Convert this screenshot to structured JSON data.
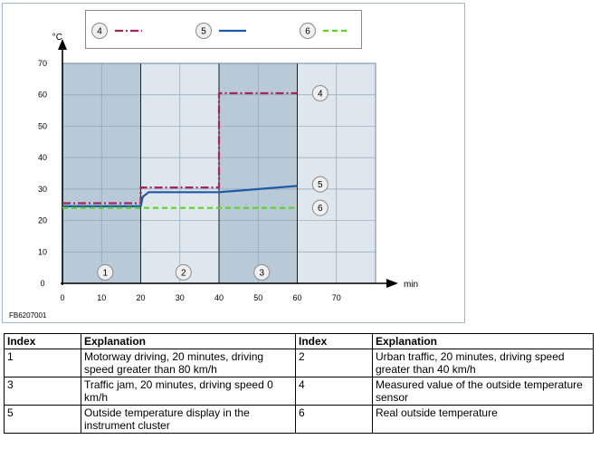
{
  "figure_code": "FB6207001",
  "legend": [
    {
      "label": "4",
      "color": "#a4265a",
      "dash": "dashdot"
    },
    {
      "label": "5",
      "color": "#1f5aa6",
      "dash": "solid"
    },
    {
      "label": "6",
      "color": "#5ad41e",
      "dash": "dashed"
    }
  ],
  "zones": [
    {
      "label": "1",
      "from": 0,
      "to": 20,
      "shade": "dark"
    },
    {
      "label": "2",
      "from": 20,
      "to": 40,
      "shade": "light"
    },
    {
      "label": "3",
      "from": 40,
      "to": 60,
      "shade": "dark"
    },
    {
      "label": "",
      "from": 60,
      "to": 80,
      "shade": "light"
    }
  ],
  "chart_data": {
    "type": "line",
    "xlabel": "min",
    "ylabel": "°C",
    "xlim": [
      0,
      80
    ],
    "ylim": [
      0,
      70
    ],
    "xticks": [
      0,
      10,
      20,
      30,
      40,
      50,
      60,
      70
    ],
    "yticks": [
      0,
      10,
      20,
      30,
      40,
      50,
      60,
      70
    ],
    "grid": true,
    "series": [
      {
        "name": "4",
        "color": "#a4265a",
        "style": "dashdot",
        "points": [
          [
            0,
            25.5
          ],
          [
            20,
            25.5
          ],
          [
            20,
            30.5
          ],
          [
            40,
            30.5
          ],
          [
            40,
            60.5
          ],
          [
            60,
            60.5
          ]
        ],
        "label_at": [
          64,
          60.5
        ]
      },
      {
        "name": "5",
        "color": "#1f5aa6",
        "style": "solid",
        "points": [
          [
            0,
            24.5
          ],
          [
            20,
            24.5
          ],
          [
            20.5,
            27.5
          ],
          [
            22,
            29
          ],
          [
            40,
            29
          ],
          [
            45,
            29.5
          ],
          [
            60,
            31
          ]
        ],
        "label_at": [
          64,
          31.5
        ]
      },
      {
        "name": "6",
        "color": "#5ad41e",
        "style": "dashed",
        "points": [
          [
            0,
            24
          ],
          [
            60,
            24
          ]
        ],
        "label_at": [
          64,
          24
        ]
      }
    ]
  },
  "table": {
    "headers": [
      "Index",
      "Explanation",
      "Index",
      "Explanation"
    ],
    "rows": [
      [
        "1",
        "Motorway driving, 20 minutes, driving speed greater than 80 km/h",
        "2",
        "Urban traffic, 20 minutes, driving speed greater than 40 km/h"
      ],
      [
        "3",
        "Traffic jam, 20 minutes, driving speed 0 km/h",
        "4",
        "Measured value of the outside temperature sensor"
      ],
      [
        "5",
        "Outside temperature display in the instrument cluster",
        "6",
        "Real outside temperature"
      ]
    ]
  }
}
